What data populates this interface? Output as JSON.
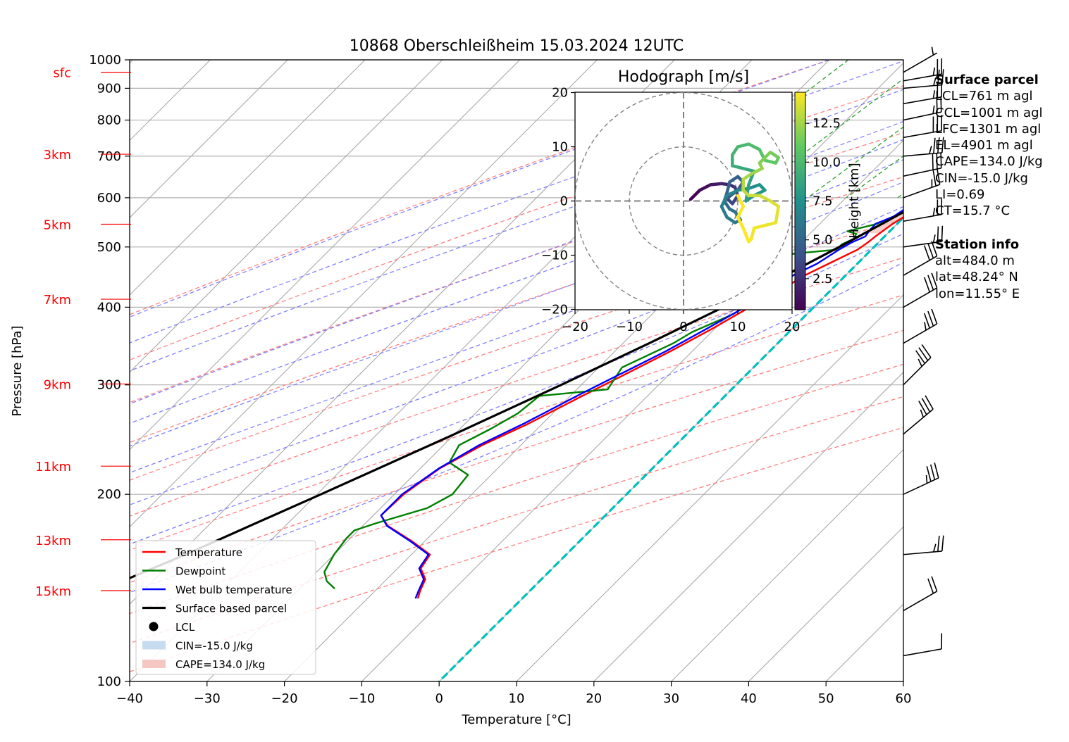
{
  "chart_data": {
    "type": "line",
    "title": "10868 Oberschleißheim 15.03.2024 12UTC",
    "xlabel": "Temperature [°C]",
    "ylabel": "Pressure [hPa]",
    "xlim": [
      -40,
      60
    ],
    "ylim": [
      1000,
      100
    ],
    "y_scale": "log",
    "x_ticks": [
      "−40",
      "−30",
      "−20",
      "−10",
      "0",
      "10",
      "20",
      "30",
      "40",
      "50",
      "60"
    ],
    "y_ticks": [
      "100",
      "200",
      "300",
      "400",
      "500",
      "600",
      "700",
      "800",
      "900",
      "1000"
    ],
    "height_labels": [
      {
        "label": "15km",
        "p": 140
      },
      {
        "label": "13km",
        "p": 169
      },
      {
        "label": "11km",
        "p": 222
      },
      {
        "label": "9km",
        "p": 301
      },
      {
        "label": "7km",
        "p": 412
      },
      {
        "label": "5km",
        "p": 544
      },
      {
        "label": "3km",
        "p": 705
      },
      {
        "label": "sfc",
        "p": 955
      }
    ],
    "colors": {
      "temperature": "#ff0000",
      "dewpoint": "#008000",
      "wetbulb": "#0000ff",
      "parcel": "#000000",
      "dry_adiabat": "#ff7f7f",
      "moist_adiabat": "#7f7fff",
      "mixing_ratio": "#2ca02c",
      "isotherm": "#a9a9a9",
      "zero_isotherm": "#00bfbf",
      "cin": "#c6dbef",
      "cape": "#f4c7c3",
      "height_label": "#ff0000"
    },
    "legend": {
      "placement": "lower-left",
      "entries": [
        {
          "label": "Temperature",
          "key": "temperature"
        },
        {
          "label": "Dewpoint",
          "key": "dewpoint"
        },
        {
          "label": "Wet bulb temperature",
          "key": "wetbulb"
        },
        {
          "label": "Surface based parcel",
          "key": "parcel"
        },
        {
          "label": "LCL",
          "key": "lcl"
        },
        {
          "label": "CIN=-15.0 J/kg",
          "key": "cin"
        },
        {
          "label": "CAPE=134.0 J/kg",
          "key": "cape"
        }
      ]
    },
    "series": [
      {
        "name": "Temperature",
        "points": [
          [
            955,
            13.6
          ],
          [
            925,
            11.0
          ],
          [
            900,
            10.5
          ],
          [
            870,
            9.0
          ],
          [
            850,
            8.0
          ],
          [
            820,
            6.8
          ],
          [
            800,
            6.2
          ],
          [
            760,
            5.8
          ],
          [
            720,
            4.9
          ],
          [
            700,
            4.6
          ],
          [
            660,
            3.6
          ],
          [
            620,
            2.5
          ],
          [
            600,
            1.8
          ],
          [
            570,
            0.4
          ],
          [
            545,
            -0.6
          ],
          [
            520,
            -1.2
          ],
          [
            508,
            -1.4
          ],
          [
            495,
            -1.8
          ],
          [
            470,
            -3.7
          ],
          [
            450,
            -5.3
          ],
          [
            420,
            -6.8
          ],
          [
            400,
            -8.3
          ],
          [
            370,
            -10.3
          ],
          [
            340,
            -12.8
          ],
          [
            310,
            -15.9
          ],
          [
            290,
            -18.2
          ],
          [
            260,
            -21.8
          ],
          [
            240,
            -25.0
          ],
          [
            220,
            -27.5
          ],
          [
            200,
            -28.8
          ],
          [
            185,
            -29.0
          ],
          [
            178,
            -26.8
          ],
          [
            168,
            -21.6
          ],
          [
            160,
            -17.6
          ],
          [
            152,
            -17.0
          ],
          [
            146,
            -15.0
          ],
          [
            140,
            -14.2
          ],
          [
            136,
            -13.5
          ]
        ]
      },
      {
        "name": "Dewpoint",
        "points": [
          [
            955,
            9.0
          ],
          [
            940,
            8.2
          ],
          [
            920,
            7.8
          ],
          [
            900,
            7.2
          ],
          [
            880,
            7.6
          ],
          [
            860,
            7.0
          ],
          [
            840,
            6.0
          ],
          [
            820,
            5.0
          ],
          [
            800,
            4.5
          ],
          [
            770,
            2.8
          ],
          [
            740,
            2.0
          ],
          [
            720,
            1.4
          ],
          [
            700,
            2.6
          ],
          [
            680,
            2.9
          ],
          [
            660,
            3.0
          ],
          [
            640,
            2.2
          ],
          [
            620,
            1.4
          ],
          [
            600,
            0.2
          ],
          [
            580,
            0.5
          ],
          [
            560,
            -1.4
          ],
          [
            545,
            -2.6
          ],
          [
            530,
            -5.5
          ],
          [
            525,
            -4.0
          ],
          [
            515,
            -3.7
          ],
          [
            505,
            -4.5
          ],
          [
            495,
            -4.5
          ],
          [
            490,
            -8.0
          ],
          [
            470,
            -21.0
          ],
          [
            455,
            -22.0
          ],
          [
            445,
            -17.0
          ],
          [
            440,
            -16.5
          ],
          [
            430,
            -10.0
          ],
          [
            410,
            -8.5
          ],
          [
            390,
            -9.5
          ],
          [
            365,
            -12.5
          ],
          [
            350,
            -13.5
          ],
          [
            320,
            -17.0
          ],
          [
            295,
            -16.0
          ],
          [
            288,
            -24.0
          ],
          [
            270,
            -24.5
          ],
          [
            255,
            -26.0
          ],
          [
            240,
            -28.0
          ],
          [
            225,
            -27.0
          ],
          [
            215,
            -23.0
          ],
          [
            200,
            -22.5
          ],
          [
            190,
            -24.0
          ],
          [
            180,
            -28.5
          ],
          [
            175,
            -30.5
          ],
          [
            170,
            -30.5
          ],
          [
            160,
            -30.0
          ],
          [
            150,
            -29.0
          ],
          [
            145,
            -27.5
          ],
          [
            141,
            -25.5
          ]
        ]
      },
      {
        "name": "Wet bulb temperature",
        "points": [
          [
            955,
            11.5
          ],
          [
            925,
            10.2
          ],
          [
            900,
            9.4
          ],
          [
            870,
            8.5
          ],
          [
            850,
            8.0
          ],
          [
            820,
            6.0
          ],
          [
            800,
            5.4
          ],
          [
            770,
            4.0
          ],
          [
            740,
            3.4
          ],
          [
            720,
            3.3
          ],
          [
            700,
            3.5
          ],
          [
            680,
            3.4
          ],
          [
            650,
            2.6
          ],
          [
            620,
            1.4
          ],
          [
            600,
            0.6
          ],
          [
            580,
            -0.8
          ],
          [
            560,
            -1.4
          ],
          [
            545,
            -2.8
          ],
          [
            530,
            -2.7
          ],
          [
            520,
            -2.5
          ],
          [
            508,
            -3.5
          ],
          [
            495,
            -4.2
          ],
          [
            470,
            -5.2
          ],
          [
            450,
            -6.8
          ],
          [
            420,
            -6.9
          ],
          [
            400,
            -8.9
          ],
          [
            370,
            -11.0
          ],
          [
            340,
            -13.4
          ],
          [
            310,
            -16.6
          ],
          [
            290,
            -18.9
          ],
          [
            260,
            -22.4
          ],
          [
            240,
            -25.4
          ],
          [
            220,
            -27.6
          ],
          [
            200,
            -29.0
          ],
          [
            185,
            -29.0
          ],
          [
            178,
            -26.9
          ],
          [
            168,
            -21.8
          ],
          [
            160,
            -17.8
          ],
          [
            152,
            -17.2
          ],
          [
            146,
            -15.2
          ],
          [
            140,
            -14.4
          ],
          [
            136,
            -13.8
          ]
        ]
      },
      {
        "name": "Surface based parcel",
        "points": [
          [
            955,
            15.0
          ],
          [
            925,
            12.3
          ],
          [
            900,
            11.0
          ],
          [
            875,
            10.2
          ],
          [
            850,
            9.7
          ],
          [
            800,
            8.2
          ],
          [
            750,
            6.7
          ],
          [
            700,
            4.8
          ],
          [
            650,
            2.9
          ],
          [
            600,
            0.8
          ],
          [
            550,
            -1.7
          ],
          [
            500,
            -4.5
          ],
          [
            450,
            -7.8
          ],
          [
            400,
            -11.7
          ],
          [
            350,
            -16.6
          ],
          [
            300,
            -22.6
          ],
          [
            250,
            -30.0
          ],
          [
            200,
            -39.5
          ],
          [
            180,
            -44.1
          ],
          [
            160,
            -49.2
          ],
          [
            140,
            -55.6
          ],
          [
            120,
            -62.6
          ],
          [
            110,
            -66.7
          ],
          [
            100,
            -71.0
          ]
        ]
      }
    ],
    "lcl": {
      "p": 875,
      "t": 10.5
    },
    "dry_adiabats_theta_c": [
      -30,
      -10,
      10,
      30,
      50,
      70,
      90,
      110,
      130,
      150,
      170
    ],
    "moist_adiabat_wbt_c": [
      -30,
      -20,
      -10,
      0,
      5,
      10,
      15,
      20,
      25,
      30
    ],
    "mixing_ratios_gkg": [
      0.4,
      1,
      2,
      3,
      5,
      8,
      12,
      16,
      20
    ],
    "wind_barbs": [
      {
        "p": 955,
        "speed_ms": 2.5,
        "dir": 240
      },
      {
        "p": 925,
        "speed_ms": 12.5,
        "dir": 260
      },
      {
        "p": 900,
        "speed_ms": 12.5,
        "dir": 265
      },
      {
        "p": 850,
        "speed_ms": 12.5,
        "dir": 260
      },
      {
        "p": 800,
        "speed_ms": 12.5,
        "dir": 258
      },
      {
        "p": 750,
        "speed_ms": 15.0,
        "dir": 260
      },
      {
        "p": 700,
        "speed_ms": 17.5,
        "dir": 265
      },
      {
        "p": 650,
        "speed_ms": 15.0,
        "dir": 258
      },
      {
        "p": 600,
        "speed_ms": 12.5,
        "dir": 250
      },
      {
        "p": 550,
        "speed_ms": 12.5,
        "dir": 260
      },
      {
        "p": 500,
        "speed_ms": 12.5,
        "dir": 262
      },
      {
        "p": 450,
        "speed_ms": 15.0,
        "dir": 240
      },
      {
        "p": 400,
        "speed_ms": 15.0,
        "dir": 240
      },
      {
        "p": 350,
        "speed_ms": 17.5,
        "dir": 240
      },
      {
        "p": 300,
        "speed_ms": 17.5,
        "dir": 225
      },
      {
        "p": 250,
        "speed_ms": 17.5,
        "dir": 230
      },
      {
        "p": 200,
        "speed_ms": 17.5,
        "dir": 245
      },
      {
        "p": 160,
        "speed_ms": 12.5,
        "dir": 265
      },
      {
        "p": 130,
        "speed_ms": 10.0,
        "dir": 240
      },
      {
        "p": 110,
        "speed_ms": 5.0,
        "dir": 260
      }
    ],
    "hodograph": {
      "title": "Hodograph [m/s]",
      "xlim": [
        -20,
        20
      ],
      "ylim": [
        -20,
        20
      ],
      "ticks": [
        "−20",
        "−10",
        "0",
        "10",
        "20"
      ],
      "rings": [
        10,
        20
      ],
      "colorbar_label": "Height [km]",
      "colorbar_ticks": [
        "2.5",
        "5.0",
        "7.5",
        "10.0",
        "12.5"
      ],
      "colorbar_range": [
        0.5,
        14.5
      ],
      "points": [
        [
          1.3,
          0.3,
          0.5
        ],
        [
          3,
          2,
          1
        ],
        [
          5,
          3,
          1.5
        ],
        [
          7,
          3.2,
          2
        ],
        [
          8.5,
          3,
          2.5
        ],
        [
          9.5,
          2.5,
          3
        ],
        [
          10,
          1,
          3.3
        ],
        [
          9,
          -0.5,
          3.6
        ],
        [
          8,
          0.5,
          3.9
        ],
        [
          10,
          2,
          4.2
        ],
        [
          11,
          3.5,
          4.5
        ],
        [
          10,
          4.5,
          4.8
        ],
        [
          8.5,
          3.5,
          5.0
        ],
        [
          8,
          1.5,
          5.2
        ],
        [
          7.5,
          0,
          5.4
        ],
        [
          8.5,
          -1.5,
          5.6
        ],
        [
          9.5,
          -2,
          5.8
        ],
        [
          10.5,
          -3.5,
          6.0
        ],
        [
          9.5,
          -4,
          6.2
        ],
        [
          8,
          -3,
          6.4
        ],
        [
          7,
          -1,
          6.6
        ],
        [
          8,
          1,
          6.8
        ],
        [
          10,
          2,
          7.0
        ],
        [
          12,
          2.3,
          7.3
        ],
        [
          14,
          3,
          7.6
        ],
        [
          15,
          2,
          7.9
        ],
        [
          13,
          1,
          8.1
        ],
        [
          11.5,
          0,
          8.3
        ],
        [
          12,
          3,
          8.5
        ],
        [
          13,
          5.5,
          8.8
        ],
        [
          11,
          6,
          9.0
        ],
        [
          9,
          6.5,
          9.3
        ],
        [
          9,
          8.5,
          9.6
        ],
        [
          10,
          10,
          9.9
        ],
        [
          12,
          10.5,
          10.2
        ],
        [
          14,
          9.5,
          10.5
        ],
        [
          15,
          7.5,
          10.8
        ],
        [
          17,
          7,
          11.1
        ],
        [
          17.5,
          8,
          11.4
        ],
        [
          16,
          9,
          11.7
        ],
        [
          14,
          7,
          12.0
        ],
        [
          14.5,
          6,
          12.3
        ],
        [
          12.5,
          5,
          12.6
        ],
        [
          11,
          4,
          12.9
        ],
        [
          11,
          2,
          13.1
        ],
        [
          12,
          1,
          13.3
        ],
        [
          14,
          1,
          13.5
        ],
        [
          16,
          0,
          13.7
        ],
        [
          17.5,
          -1,
          13.9
        ],
        [
          17,
          -4,
          14.1
        ],
        [
          15,
          -4.5,
          14.2
        ],
        [
          13,
          -5,
          14.3
        ],
        [
          12.5,
          -7,
          14.4
        ],
        [
          12,
          -7.5,
          14.5
        ],
        [
          11,
          -5,
          14.5
        ],
        [
          10,
          -3,
          14.5
        ],
        [
          11,
          -1,
          14.5
        ],
        [
          10,
          1,
          14.5
        ]
      ]
    },
    "side_info": {
      "surface_parcel": {
        "header": "Surface parcel",
        "lines": [
          "LCL=761 m agl",
          "CCL=1001 m agl",
          "LFC=1301 m agl",
          "EL=4901 m agl",
          "CAPE=134.0 J/kg",
          "CIN=-15.0 J/kg",
          "LI=0.69",
          "CT=15.7 °C"
        ]
      },
      "station": {
        "header": "Station info",
        "lines": [
          "alt=484.0 m",
          "lat=48.24° N",
          "lon=11.55° E"
        ]
      }
    }
  }
}
